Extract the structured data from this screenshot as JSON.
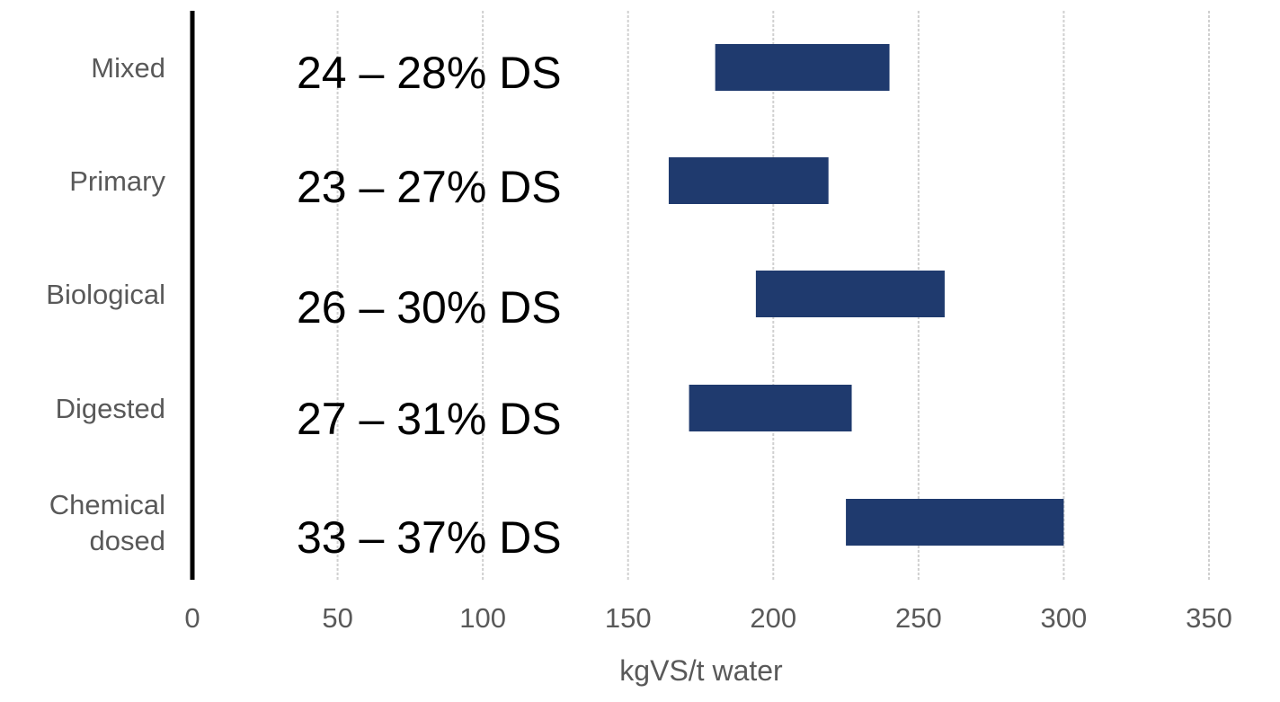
{
  "chart_data": {
    "type": "bar",
    "orientation": "horizontal",
    "style": "floating-range",
    "xlabel": "kgVS/t water",
    "xlim": [
      0,
      350
    ],
    "xticks": [
      0,
      50,
      100,
      150,
      200,
      250,
      300,
      350
    ],
    "grid": true,
    "bar_color": "#1f3a6e",
    "categories": [
      {
        "label_lines": [
          "Mixed"
        ],
        "range": [
          180,
          240
        ],
        "ds_label": "24 – 28% DS"
      },
      {
        "label_lines": [
          "Primary"
        ],
        "range": [
          164,
          219
        ],
        "ds_label": "23 – 27% DS"
      },
      {
        "label_lines": [
          "Biological"
        ],
        "range": [
          194,
          259
        ],
        "ds_label": "26 – 30% DS"
      },
      {
        "label_lines": [
          "Digested"
        ],
        "range": [
          171,
          227
        ],
        "ds_label": "27 – 31% DS"
      },
      {
        "label_lines": [
          "Chemical",
          "dosed"
        ],
        "range": [
          225,
          300
        ],
        "ds_label": "33 – 37% DS"
      }
    ]
  }
}
